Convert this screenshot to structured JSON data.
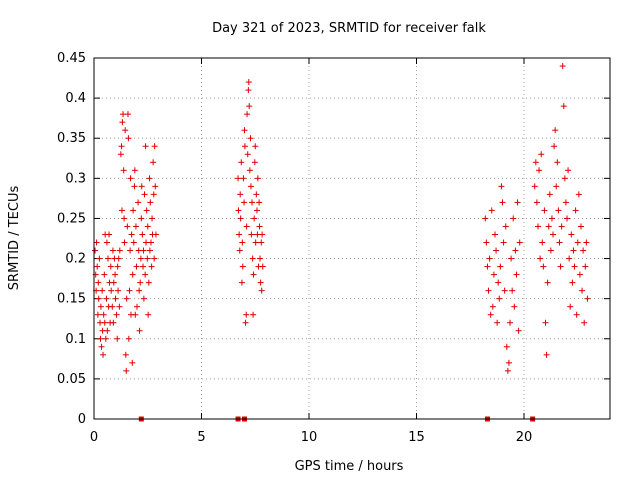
{
  "chart_data": {
    "type": "scatter",
    "title": "Day 321 of 2023, SRMTID for receiver falk",
    "xlabel": "GPS time / hours",
    "ylabel": "SRMTID / TECUs",
    "xlim": [
      0,
      24
    ],
    "ylim": [
      0,
      0.45
    ],
    "xticks": [
      "0",
      "5",
      "10",
      "15",
      "20"
    ],
    "yticks": [
      "0",
      "0.05",
      "0.1",
      "0.15",
      "0.2",
      "0.25",
      "0.3",
      "0.35",
      "0.4",
      "0.45"
    ],
    "grid": true,
    "legend": "none",
    "marker": "plus",
    "color": "#dd0000",
    "clusters_note_free": true,
    "points_plus": [
      [
        0.05,
        0.21
      ],
      [
        0.08,
        0.18
      ],
      [
        0.1,
        0.16
      ],
      [
        0.12,
        0.22
      ],
      [
        0.15,
        0.19
      ],
      [
        0.18,
        0.13
      ],
      [
        0.2,
        0.17
      ],
      [
        0.22,
        0.15
      ],
      [
        0.25,
        0.2
      ],
      [
        0.28,
        0.12
      ],
      [
        0.3,
        0.1
      ],
      [
        0.32,
        0.14
      ],
      [
        0.35,
        0.09
      ],
      [
        0.38,
        0.16
      ],
      [
        0.4,
        0.11
      ],
      [
        0.42,
        0.08
      ],
      [
        0.45,
        0.13
      ],
      [
        0.48,
        0.18
      ],
      [
        0.5,
        0.12
      ],
      [
        0.52,
        0.23
      ],
      [
        0.55,
        0.1
      ],
      [
        0.58,
        0.15
      ],
      [
        0.6,
        0.22
      ],
      [
        0.62,
        0.11
      ],
      [
        0.65,
        0.2
      ],
      [
        0.68,
        0.14
      ],
      [
        0.7,
        0.23
      ],
      [
        0.72,
        0.17
      ],
      [
        0.75,
        0.12
      ],
      [
        0.78,
        0.19
      ],
      [
        0.8,
        0.16
      ],
      [
        0.85,
        0.14
      ],
      [
        0.88,
        0.21
      ],
      [
        0.9,
        0.12
      ],
      [
        0.92,
        0.17
      ],
      [
        0.95,
        0.2
      ],
      [
        0.98,
        0.18
      ],
      [
        1.0,
        0.15
      ],
      [
        1.05,
        0.13
      ],
      [
        1.08,
        0.1
      ],
      [
        1.1,
        0.19
      ],
      [
        1.12,
        0.16
      ],
      [
        1.15,
        0.2
      ],
      [
        1.18,
        0.14
      ],
      [
        1.2,
        0.21
      ],
      [
        1.25,
        0.33
      ],
      [
        1.28,
        0.34
      ],
      [
        1.3,
        0.26
      ],
      [
        1.32,
        0.37
      ],
      [
        1.35,
        0.38
      ],
      [
        1.38,
        0.31
      ],
      [
        1.4,
        0.25
      ],
      [
        1.42,
        0.22
      ],
      [
        1.45,
        0.36
      ],
      [
        1.48,
        0.08
      ],
      [
        1.5,
        0.06
      ],
      [
        1.52,
        0.15
      ],
      [
        1.55,
        0.24
      ],
      [
        1.58,
        0.38
      ],
      [
        1.6,
        0.35
      ],
      [
        1.62,
        0.1
      ],
      [
        1.65,
        0.16
      ],
      [
        1.68,
        0.21
      ],
      [
        1.7,
        0.3
      ],
      [
        1.72,
        0.13
      ],
      [
        1.75,
        0.23
      ],
      [
        1.78,
        0.07
      ],
      [
        1.8,
        0.18
      ],
      [
        1.82,
        0.26
      ],
      [
        1.85,
        0.22
      ],
      [
        1.88,
        0.29
      ],
      [
        1.9,
        0.31
      ],
      [
        1.92,
        0.13
      ],
      [
        1.95,
        0.24
      ],
      [
        1.98,
        0.19
      ],
      [
        2.0,
        0.14
      ],
      [
        2.05,
        0.27
      ],
      [
        2.08,
        0.21
      ],
      [
        2.1,
        0.16
      ],
      [
        2.12,
        0.11
      ],
      [
        2.15,
        0.17
      ],
      [
        2.18,
        0.2
      ],
      [
        2.2,
        0.25
      ],
      [
        2.22,
        0.29
      ],
      [
        2.25,
        0.23
      ],
      [
        2.28,
        0.19
      ],
      [
        2.3,
        0.21
      ],
      [
        2.32,
        0.15
      ],
      [
        2.35,
        0.28
      ],
      [
        2.38,
        0.18
      ],
      [
        2.4,
        0.34
      ],
      [
        2.42,
        0.22
      ],
      [
        2.45,
        0.26
      ],
      [
        2.48,
        0.2
      ],
      [
        2.5,
        0.24
      ],
      [
        2.52,
        0.13
      ],
      [
        2.55,
        0.17
      ],
      [
        2.58,
        0.3
      ],
      [
        2.6,
        0.21
      ],
      [
        2.62,
        0.27
      ],
      [
        2.65,
        0.22
      ],
      [
        2.68,
        0.19
      ],
      [
        2.7,
        0.25
      ],
      [
        2.72,
        0.23
      ],
      [
        2.75,
        0.32
      ],
      [
        2.78,
        0.28
      ],
      [
        2.8,
        0.2
      ],
      [
        2.82,
        0.34
      ],
      [
        2.85,
        0.29
      ],
      [
        2.88,
        0.23
      ],
      [
        6.7,
        0.3
      ],
      [
        6.72,
        0.26
      ],
      [
        6.75,
        0.23
      ],
      [
        6.78,
        0.21
      ],
      [
        6.8,
        0.28
      ],
      [
        6.82,
        0.25
      ],
      [
        6.85,
        0.32
      ],
      [
        6.88,
        0.17
      ],
      [
        6.9,
        0.22
      ],
      [
        6.92,
        0.19
      ],
      [
        6.95,
        0.3
      ],
      [
        6.98,
        0.27
      ],
      [
        7.0,
        0.36
      ],
      [
        7.02,
        0.34
      ],
      [
        7.05,
        0.12
      ],
      [
        7.08,
        0.13
      ],
      [
        7.1,
        0.24
      ],
      [
        7.12,
        0.38
      ],
      [
        7.15,
        0.33
      ],
      [
        7.18,
        0.41
      ],
      [
        7.2,
        0.42
      ],
      [
        7.22,
        0.39
      ],
      [
        7.25,
        0.31
      ],
      [
        7.28,
        0.35
      ],
      [
        7.3,
        0.29
      ],
      [
        7.32,
        0.23
      ],
      [
        7.35,
        0.27
      ],
      [
        7.38,
        0.2
      ],
      [
        7.4,
        0.13
      ],
      [
        7.42,
        0.18
      ],
      [
        7.45,
        0.25
      ],
      [
        7.48,
        0.32
      ],
      [
        7.5,
        0.34
      ],
      [
        7.52,
        0.22
      ],
      [
        7.55,
        0.28
      ],
      [
        7.58,
        0.26
      ],
      [
        7.6,
        0.23
      ],
      [
        7.62,
        0.3
      ],
      [
        7.65,
        0.19
      ],
      [
        7.68,
        0.27
      ],
      [
        7.7,
        0.24
      ],
      [
        7.72,
        0.2
      ],
      [
        7.75,
        0.17
      ],
      [
        7.78,
        0.22
      ],
      [
        7.8,
        0.16
      ],
      [
        7.82,
        0.23
      ],
      [
        7.85,
        0.19
      ],
      [
        18.2,
        0.25
      ],
      [
        18.25,
        0.22
      ],
      [
        18.3,
        0.19
      ],
      [
        18.35,
        0.16
      ],
      [
        18.4,
        0.2
      ],
      [
        18.45,
        0.13
      ],
      [
        18.5,
        0.26
      ],
      [
        18.55,
        0.14
      ],
      [
        18.6,
        0.18
      ],
      [
        18.65,
        0.23
      ],
      [
        18.7,
        0.21
      ],
      [
        18.75,
        0.12
      ],
      [
        18.8,
        0.17
      ],
      [
        18.85,
        0.15
      ],
      [
        18.9,
        0.19
      ],
      [
        18.95,
        0.29
      ],
      [
        19.0,
        0.27
      ],
      [
        19.05,
        0.22
      ],
      [
        19.1,
        0.16
      ],
      [
        19.15,
        0.24
      ],
      [
        19.2,
        0.09
      ],
      [
        19.25,
        0.06
      ],
      [
        19.3,
        0.07
      ],
      [
        19.35,
        0.12
      ],
      [
        19.4,
        0.2
      ],
      [
        19.45,
        0.16
      ],
      [
        19.5,
        0.25
      ],
      [
        19.55,
        0.14
      ],
      [
        19.6,
        0.21
      ],
      [
        19.65,
        0.18
      ],
      [
        19.7,
        0.27
      ],
      [
        19.75,
        0.11
      ],
      [
        19.8,
        0.22
      ],
      [
        20.5,
        0.29
      ],
      [
        20.55,
        0.32
      ],
      [
        20.6,
        0.27
      ],
      [
        20.65,
        0.24
      ],
      [
        20.7,
        0.31
      ],
      [
        20.75,
        0.2
      ],
      [
        20.8,
        0.33
      ],
      [
        20.85,
        0.22
      ],
      [
        20.9,
        0.19
      ],
      [
        20.95,
        0.26
      ],
      [
        21.0,
        0.12
      ],
      [
        21.05,
        0.08
      ],
      [
        21.1,
        0.17
      ],
      [
        21.15,
        0.24
      ],
      [
        21.2,
        0.28
      ],
      [
        21.25,
        0.21
      ],
      [
        21.3,
        0.25
      ],
      [
        21.35,
        0.23
      ],
      [
        21.4,
        0.34
      ],
      [
        21.45,
        0.36
      ],
      [
        21.5,
        0.29
      ],
      [
        21.55,
        0.32
      ],
      [
        21.6,
        0.26
      ],
      [
        21.65,
        0.22
      ],
      [
        21.7,
        0.19
      ],
      [
        21.75,
        0.24
      ],
      [
        21.8,
        0.44
      ],
      [
        21.85,
        0.39
      ],
      [
        21.9,
        0.3
      ],
      [
        21.95,
        0.27
      ],
      [
        22.0,
        0.25
      ],
      [
        22.05,
        0.31
      ],
      [
        22.1,
        0.2
      ],
      [
        22.15,
        0.14
      ],
      [
        22.2,
        0.23
      ],
      [
        22.25,
        0.17
      ],
      [
        22.3,
        0.21
      ],
      [
        22.35,
        0.19
      ],
      [
        22.4,
        0.26
      ],
      [
        22.45,
        0.13
      ],
      [
        22.5,
        0.22
      ],
      [
        22.55,
        0.28
      ],
      [
        22.6,
        0.18
      ],
      [
        22.65,
        0.24
      ],
      [
        22.7,
        0.16
      ],
      [
        22.75,
        0.21
      ],
      [
        22.8,
        0.12
      ],
      [
        22.85,
        0.19
      ],
      [
        22.9,
        0.22
      ],
      [
        22.95,
        0.15
      ]
    ],
    "points_square": [
      [
        2.2,
        0.0
      ],
      [
        6.7,
        0.0
      ],
      [
        7.0,
        0.0
      ],
      [
        18.3,
        0.0
      ],
      [
        20.4,
        0.0
      ]
    ]
  }
}
